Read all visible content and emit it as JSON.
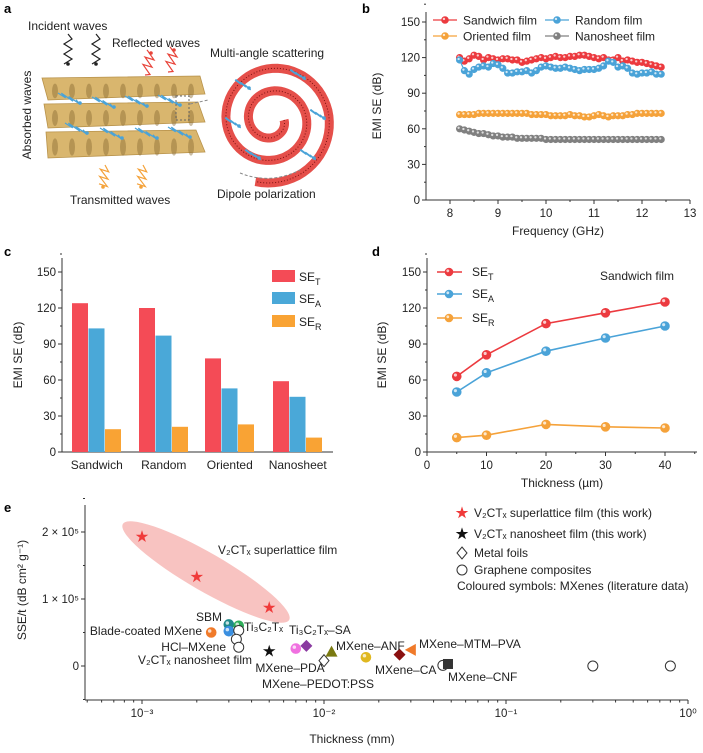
{
  "panel_letters": {
    "a": "a",
    "b": "b",
    "c": "c",
    "d": "d",
    "e": "e"
  },
  "schematic": {
    "incident": "Incident waves",
    "reflected": "Reflected waves",
    "scattering": "Multi-angle scattering",
    "absorbed": "Absorbed waves",
    "transmitted": "Transmitted waves",
    "dipole": "Dipole polarization",
    "colors": {
      "layer": "#d9b66e",
      "incident": "#222222",
      "reflected": "#e8443a",
      "absorbed": "#4aa3d8",
      "transmitted": "#f4a23a",
      "spiral": "#e0302a"
    }
  },
  "chart_data": [
    {
      "panel": "b",
      "type": "line",
      "xlabel": "Frequency (GHz)",
      "ylabel": "EMI SE (dB)",
      "xlim": [
        7.5,
        13
      ],
      "ylim": [
        0,
        158
      ],
      "xticks": [
        "8",
        "9",
        "10",
        "11",
        "12",
        "13"
      ],
      "yticks": [
        "0",
        "30",
        "60",
        "90",
        "120",
        "150"
      ],
      "legend_placement": "top",
      "x": [
        8.2,
        8.3,
        8.4,
        8.5,
        8.6,
        8.7,
        8.8,
        8.9,
        9.0,
        9.1,
        9.2,
        9.3,
        9.4,
        9.5,
        9.6,
        9.7,
        9.8,
        9.9,
        10.0,
        10.1,
        10.2,
        10.3,
        10.4,
        10.5,
        10.6,
        10.7,
        10.8,
        10.9,
        11.0,
        11.1,
        11.2,
        11.3,
        11.4,
        11.5,
        11.6,
        11.7,
        11.8,
        11.9,
        12.0,
        12.1,
        12.2,
        12.3,
        12.4
      ],
      "series": [
        {
          "name": "Sandwich film",
          "color": "#ec3a3f",
          "values": [
            120,
            117,
            119,
            122,
            121,
            118,
            120,
            119,
            118,
            119,
            119,
            118,
            118,
            116,
            117,
            118,
            119,
            120,
            119,
            120,
            121,
            120,
            120,
            121,
            121,
            122,
            122,
            121,
            120,
            119,
            120,
            118,
            118,
            120,
            117,
            118,
            117,
            116,
            116,
            115,
            114,
            113,
            112
          ]
        },
        {
          "name": "Random film",
          "color": "#4aa3d8",
          "values": [
            118,
            109,
            106,
            110,
            112,
            113,
            112,
            115,
            114,
            111,
            107,
            107,
            108,
            108,
            109,
            107,
            109,
            112,
            113,
            112,
            111,
            111,
            112,
            111,
            110,
            109,
            110,
            110,
            110,
            111,
            113,
            117,
            116,
            112,
            113,
            111,
            107,
            106,
            107,
            107,
            108,
            106,
            106
          ]
        },
        {
          "name": "Oriented film",
          "color": "#f5a23a",
          "values": [
            72,
            72,
            72,
            72,
            73,
            73,
            73,
            73,
            73,
            73,
            73,
            73,
            73,
            73,
            73,
            72,
            72,
            72,
            72,
            71,
            71,
            71,
            71,
            72,
            71,
            71,
            70,
            70,
            71,
            72,
            71,
            70,
            71,
            71,
            71,
            72,
            72,
            73,
            73,
            73,
            73,
            73,
            73
          ]
        },
        {
          "name": "Nanosheet film",
          "color": "#808080",
          "values": [
            60,
            59,
            58,
            57,
            56,
            56,
            55,
            54,
            54,
            53,
            53,
            53,
            52,
            52,
            52,
            52,
            52,
            52,
            51,
            51,
            51,
            51,
            51,
            51,
            51,
            51,
            51,
            51,
            51,
            51,
            51,
            51,
            51,
            51,
            51,
            51,
            51,
            51,
            51,
            51,
            51,
            51,
            51
          ]
        }
      ]
    },
    {
      "panel": "c",
      "type": "bar",
      "ylabel": "EMI SE (dB)",
      "ylim": [
        0,
        160
      ],
      "yticks": [
        "0",
        "30",
        "60",
        "90",
        "120",
        "150"
      ],
      "categories": [
        "Sandwich",
        "Random",
        "Oriented",
        "Nanosheet"
      ],
      "legend_placement": "top-right",
      "series": [
        {
          "name": "SE",
          "sub": "T",
          "color": "#f44b56",
          "values": [
            124,
            120,
            78,
            59
          ]
        },
        {
          "name": "SE",
          "sub": "A",
          "color": "#4aa8d8",
          "values": [
            103,
            97,
            53,
            46
          ]
        },
        {
          "name": "SE",
          "sub": "R",
          "color": "#f9a334",
          "values": [
            19,
            21,
            23,
            12
          ]
        }
      ]
    },
    {
      "panel": "d",
      "type": "line",
      "xlabel": "Thickness (µm)",
      "ylabel": "EMI SE (dB)",
      "annotation": "Sandwich film",
      "xlim": [
        0,
        45
      ],
      "ylim": [
        0,
        160
      ],
      "xticks": [
        "0",
        "10",
        "20",
        "30",
        "40"
      ],
      "yticks": [
        "0",
        "30",
        "60",
        "90",
        "120",
        "150"
      ],
      "legend_placement": "top-left",
      "x": [
        5,
        10,
        20,
        30,
        40
      ],
      "series": [
        {
          "name": "SE",
          "sub": "T",
          "color": "#ec3a3f",
          "values": [
            63,
            81,
            107,
            116,
            125
          ]
        },
        {
          "name": "SE",
          "sub": "A",
          "color": "#4aa3d8",
          "values": [
            50,
            66,
            84,
            95,
            105
          ]
        },
        {
          "name": "SE",
          "sub": "R",
          "color": "#f5a23a",
          "values": [
            12,
            14,
            23,
            21,
            20
          ]
        }
      ]
    },
    {
      "panel": "e",
      "type": "scatter",
      "xlabel": "Thickness (mm)",
      "ylabel": "SSE/t (dB cm² g⁻¹)",
      "xscale": "log",
      "xlim": [
        0.0005,
        1
      ],
      "ylim": [
        -64000,
        240000
      ],
      "xticks": [
        "10⁻³",
        "10⁻²",
        "10⁻¹",
        "10⁰"
      ],
      "yticks": [
        "0",
        "1 × 10⁵",
        "2 × 10⁵"
      ],
      "legend_placement": "top-right",
      "legend": [
        {
          "symbol": "star",
          "color": "#f03a3a",
          "text": "V₂CTₓ superlattice film (this work)"
        },
        {
          "symbol": "star",
          "color": "#111111",
          "text": "V₂CTₓ nanosheet film (this work)"
        },
        {
          "symbol": "open-diamond",
          "color": "#333333",
          "text": "Metal foils"
        },
        {
          "symbol": "open-circle",
          "color": "#333333",
          "text": "Graphene composites"
        },
        {
          "symbol": "none",
          "color": "",
          "text": "Coloured symbols: MXenes (literature data)"
        }
      ],
      "highlight_color": "#f4a3a0",
      "points": [
        {
          "x": 0.001,
          "y": 193000,
          "symbol": "star",
          "color": "#f03a3a"
        },
        {
          "x": 0.002,
          "y": 133000,
          "symbol": "star",
          "color": "#f03a3a"
        },
        {
          "x": 0.005,
          "y": 87000,
          "symbol": "star",
          "color": "#f03a3a"
        },
        {
          "x": 0.005,
          "y": 22000,
          "symbol": "star",
          "color": "#111111"
        },
        {
          "x": 0.0024,
          "y": 50000,
          "symbol": "circle",
          "color": "#f07a2a"
        },
        {
          "x": 0.003,
          "y": 62000,
          "symbol": "circle",
          "color": "#1f8a8a"
        },
        {
          "x": 0.003,
          "y": 52000,
          "symbol": "circle",
          "color": "#3a8fe0"
        },
        {
          "x": 0.0034,
          "y": 60000,
          "symbol": "circle",
          "color": "#2fae5a"
        },
        {
          "x": 0.0034,
          "y": 53000,
          "symbol": "open-circle",
          "color": "#333333"
        },
        {
          "x": 0.0033,
          "y": 40000,
          "symbol": "open-circle",
          "color": "#333333"
        },
        {
          "x": 0.0034,
          "y": 28000,
          "symbol": "open-circle",
          "color": "#333333"
        },
        {
          "x": 0.007,
          "y": 26000,
          "symbol": "circle",
          "color": "#f070e0"
        },
        {
          "x": 0.008,
          "y": 30000,
          "symbol": "diamond",
          "color": "#8a3aa0"
        },
        {
          "x": 0.01,
          "y": 8000,
          "symbol": "open-diamond",
          "color": "#333333"
        },
        {
          "x": 0.011,
          "y": 20000,
          "symbol": "triangle-up",
          "color": "#7a7a10"
        },
        {
          "x": 0.017,
          "y": 13000,
          "symbol": "circle",
          "color": "#e0b820"
        },
        {
          "x": 0.026,
          "y": 17000,
          "symbol": "diamond",
          "color": "#8a1010"
        },
        {
          "x": 0.03,
          "y": 24000,
          "symbol": "triangle-left",
          "color": "#f07a2a"
        },
        {
          "x": 0.045,
          "y": 1000,
          "symbol": "open-circle",
          "color": "#333333"
        },
        {
          "x": 0.048,
          "y": 3000,
          "symbol": "square",
          "color": "#333333"
        },
        {
          "x": 0.3,
          "y": 0,
          "symbol": "open-circle",
          "color": "#333333"
        },
        {
          "x": 0.8,
          "y": 0,
          "symbol": "open-circle",
          "color": "#333333"
        }
      ],
      "annotations": [
        "V₂CTₓ superlattice film",
        "SBM",
        "Blade-coated MXene",
        "Ti₃C₂Tₓ",
        "Ti₃C₂Tₓ–SA",
        "HCl–MXene",
        "V₂CTₓ nanosheet film",
        "MXene–ANF",
        "MXene–MTM–PVA",
        "MXene–PDA",
        "MXene–PEDOT:PSS",
        "MXene–CA",
        "MXene–CNF"
      ]
    }
  ]
}
